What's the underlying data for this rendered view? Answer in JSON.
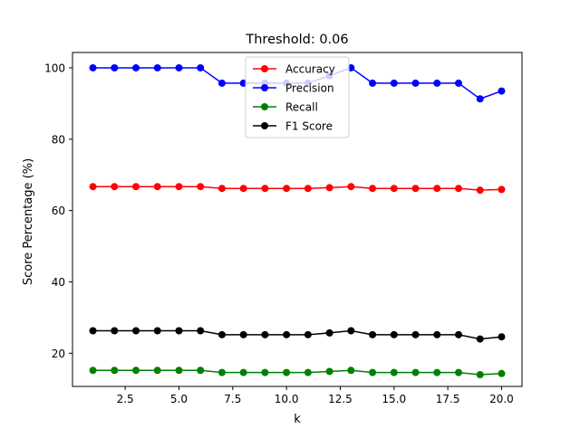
{
  "chart_data": {
    "type": "line",
    "title": "Threshold: 0.06",
    "xlabel": "k",
    "ylabel": "Score Percentage (%)",
    "xlim": [
      0.05,
      20.95
    ],
    "ylim": [
      10.7,
      104.3
    ],
    "x_ticks": [
      2.5,
      5.0,
      7.5,
      10.0,
      12.5,
      15.0,
      17.5,
      20.0
    ],
    "x_tick_labels": [
      "2.5",
      "5.0",
      "7.5",
      "10.0",
      "12.5",
      "15.0",
      "17.5",
      "20.0"
    ],
    "y_ticks": [
      20,
      40,
      60,
      80,
      100
    ],
    "y_tick_labels": [
      "20",
      "40",
      "60",
      "80",
      "100"
    ],
    "grid": false,
    "legend_position": "top-center",
    "x": [
      1,
      2,
      3,
      4,
      5,
      6,
      7,
      8,
      9,
      10,
      11,
      12,
      13,
      14,
      15,
      16,
      17,
      18,
      19,
      20
    ],
    "series": [
      {
        "name": "Accuracy",
        "color": "#ff0000",
        "values": [
          66.7,
          66.7,
          66.7,
          66.7,
          66.7,
          66.7,
          66.2,
          66.2,
          66.2,
          66.2,
          66.2,
          66.4,
          66.7,
          66.2,
          66.2,
          66.2,
          66.2,
          66.2,
          65.7,
          65.9
        ]
      },
      {
        "name": "Precision",
        "color": "#0000ff",
        "values": [
          100,
          100,
          100,
          100,
          100,
          100,
          95.7,
          95.7,
          95.7,
          95.7,
          95.7,
          97.8,
          100,
          95.7,
          95.7,
          95.7,
          95.7,
          95.7,
          91.3,
          93.5
        ]
      },
      {
        "name": "Recall",
        "color": "#008000",
        "values": [
          15.2,
          15.2,
          15.2,
          15.2,
          15.2,
          15.2,
          14.6,
          14.6,
          14.6,
          14.6,
          14.6,
          14.9,
          15.2,
          14.6,
          14.6,
          14.6,
          14.6,
          14.6,
          14.0,
          14.3
        ]
      },
      {
        "name": "F1 Score",
        "color": "#000000",
        "values": [
          26.3,
          26.3,
          26.3,
          26.3,
          26.3,
          26.3,
          25.2,
          25.2,
          25.2,
          25.2,
          25.2,
          25.7,
          26.3,
          25.2,
          25.2,
          25.2,
          25.2,
          25.2,
          24.0,
          24.6
        ]
      }
    ]
  }
}
